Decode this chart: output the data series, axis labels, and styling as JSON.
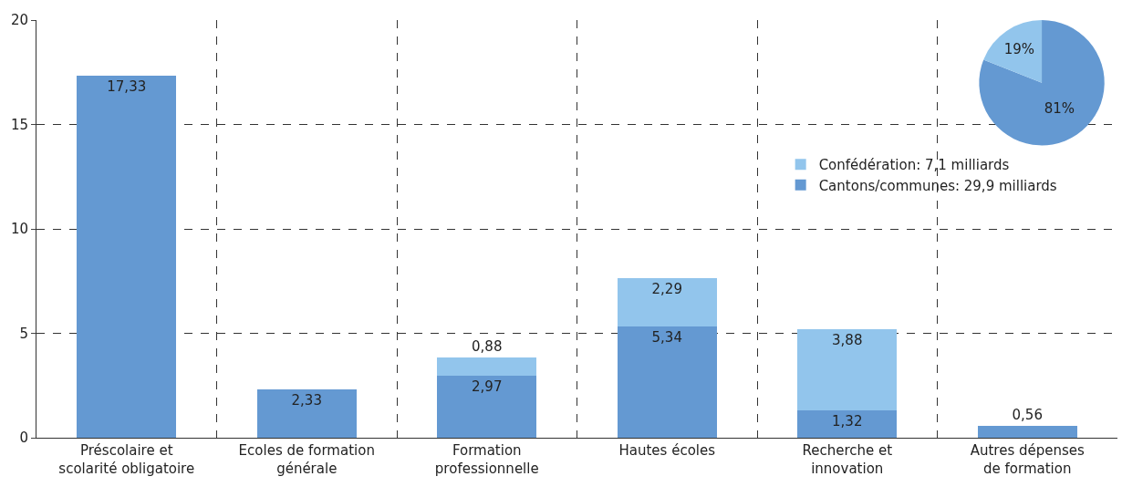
{
  "chart_data": [
    {
      "type": "bar",
      "stacked": true,
      "categories": [
        "Préscolaire et\nscolarité obligatoire",
        "Ecoles de formation\ngénérale",
        "Formation\nprofessionnelle",
        "Hautes écoles",
        "Recherche et\ninnovation",
        "Autres dépenses\nde formation"
      ],
      "series": [
        {
          "name": "Cantons/communes: 29,9 milliards",
          "color": "#6499d2",
          "values": [
            17.33,
            2.33,
            2.97,
            5.34,
            1.32,
            0.56
          ]
        },
        {
          "name": "Confédération: 7,1 milliards",
          "color": "#92c5ec",
          "values": [
            null,
            null,
            0.88,
            2.29,
            3.88,
            null
          ]
        }
      ],
      "value_labels": [
        [
          "17,33",
          "2,33",
          "2,97",
          "5,34",
          "1,32",
          "0,56"
        ],
        [
          null,
          null,
          "0,88",
          "2,29",
          "3,88",
          null
        ]
      ],
      "ylim": [
        0,
        20
      ],
      "yticks": [
        0,
        5,
        10,
        15,
        20
      ],
      "grid": true,
      "legend": "top right"
    },
    {
      "type": "pie",
      "categories": [
        null,
        null
      ],
      "values": [
        81,
        19
      ],
      "colors": [
        "#6499d2",
        "#92c5ec"
      ],
      "value_labels": [
        "81%",
        "19%"
      ]
    }
  ]
}
